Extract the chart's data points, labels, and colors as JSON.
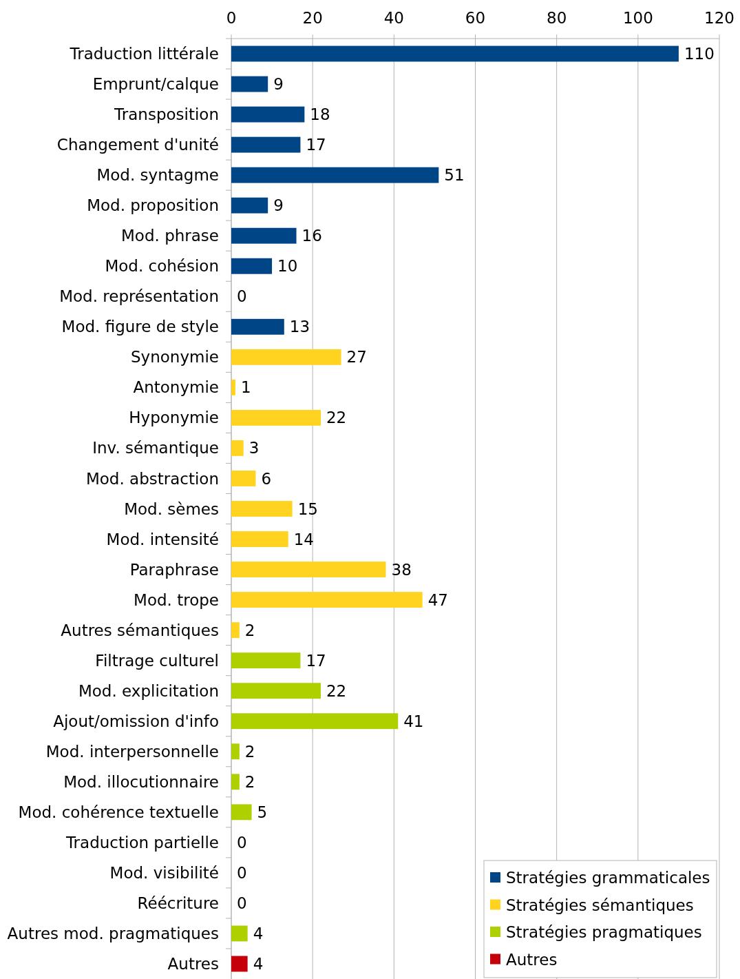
{
  "chart_data": {
    "type": "bar",
    "orientation": "horizontal",
    "categories": [
      "Traduction littérale",
      "Emprunt/calque",
      "Transposition",
      "Changement d'unité",
      "Mod. syntagme",
      "Mod. proposition",
      "Mod. phrase",
      "Mod. cohésion",
      "Mod. représentation",
      "Mod. figure de style",
      "Synonymie",
      "Antonymie",
      "Hyponymie",
      "Inv. sémantique",
      "Mod. abstraction",
      "Mod. sèmes",
      "Mod. intensité",
      "Paraphrase",
      "Mod. trope",
      "Autres sémantiques",
      "Filtrage culturel",
      "Mod. explicitation",
      "Ajout/omission d'info",
      "Mod. interpersonnelle",
      "Mod. illocutionnaire",
      "Mod. cohérence textuelle",
      "Traduction partielle",
      "Mod. visibilité",
      "Réécriture",
      "Autres mod. pragmatiques",
      "Autres"
    ],
    "series": [
      {
        "name": "Stratégies grammaticales",
        "color": "#004586",
        "values": [
          110,
          9,
          18,
          17,
          51,
          9,
          16,
          10,
          0,
          13,
          null,
          null,
          null,
          null,
          null,
          null,
          null,
          null,
          null,
          null,
          null,
          null,
          null,
          null,
          null,
          null,
          null,
          null,
          null,
          null,
          null
        ]
      },
      {
        "name": "Stratégies sémantiques",
        "color": "#ffd320",
        "values": [
          null,
          null,
          null,
          null,
          null,
          null,
          null,
          null,
          null,
          null,
          27,
          1,
          22,
          3,
          6,
          15,
          14,
          38,
          47,
          2,
          null,
          null,
          null,
          null,
          null,
          null,
          null,
          null,
          null,
          null,
          null
        ]
      },
      {
        "name": "Stratégies pragmatiques",
        "color": "#aecf00",
        "values": [
          null,
          null,
          null,
          null,
          null,
          null,
          null,
          null,
          null,
          null,
          null,
          null,
          null,
          null,
          null,
          null,
          null,
          null,
          null,
          null,
          17,
          22,
          41,
          2,
          2,
          5,
          0,
          0,
          0,
          4,
          null
        ]
      },
      {
        "name": "Autres",
        "color": "#c5000b",
        "values": [
          null,
          null,
          null,
          null,
          null,
          null,
          null,
          null,
          null,
          null,
          null,
          null,
          null,
          null,
          null,
          null,
          null,
          null,
          null,
          null,
          null,
          null,
          null,
          null,
          null,
          null,
          null,
          null,
          null,
          null,
          4
        ]
      }
    ],
    "xlim": [
      0,
      120
    ],
    "xticks": [
      0,
      20,
      40,
      60,
      80,
      100,
      120
    ],
    "grid": "x",
    "legend": "bottom right",
    "data_labels": true
  }
}
